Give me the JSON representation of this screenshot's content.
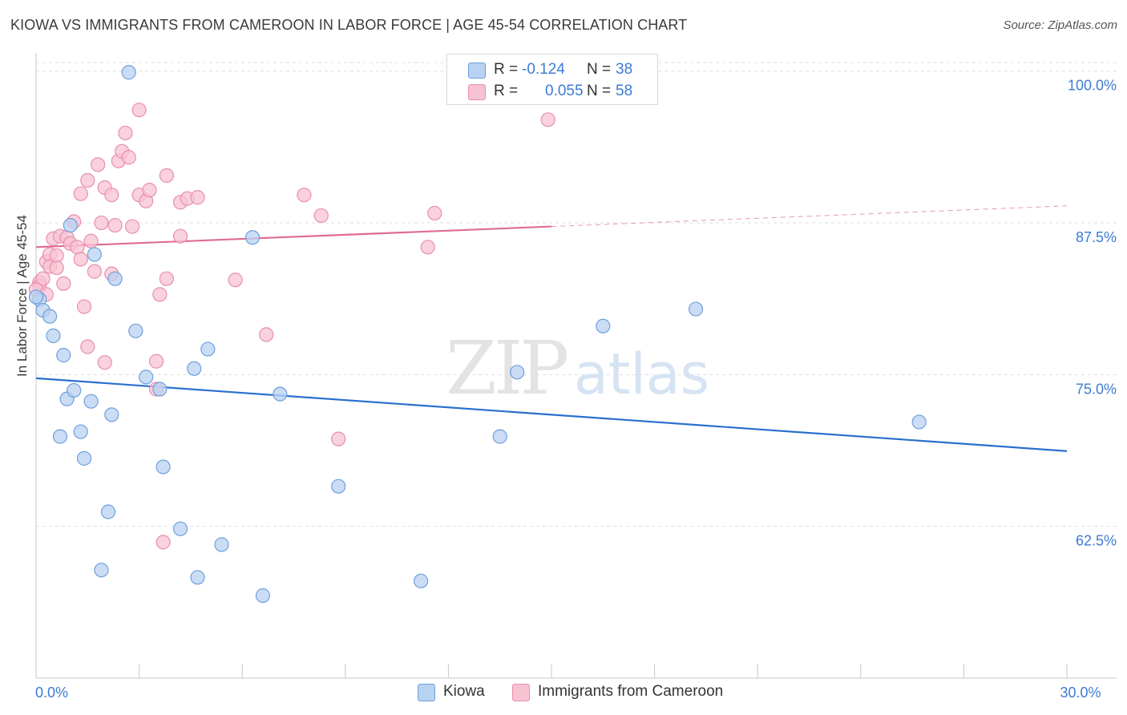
{
  "header": {
    "title": "KIOWA VS IMMIGRANTS FROM CAMEROON IN LABOR FORCE | AGE 45-54 CORRELATION CHART",
    "source": "Source: ZipAtlas.com"
  },
  "colors": {
    "kiowa_fill": "#b8d2f2",
    "kiowa_stroke": "#6f9fdc",
    "kiowa_line": "#2a6fcf",
    "cameroon_fill": "#f7c3d3",
    "cameroon_stroke": "#e98fab",
    "cameroon_line": "#e06c92",
    "axis_label": "#3d7bd4",
    "grid": "#dedede"
  },
  "watermark": {
    "zip": "ZIP",
    "atlas": "atlas"
  },
  "legend": {
    "rows": [
      {
        "r_label": "R =",
        "r_value": "-0.124",
        "n_label": "N =",
        "n_value": "38"
      },
      {
        "r_label": "R =",
        "r_value": "0.055",
        "n_label": "N =",
        "n_value": "58"
      }
    ]
  },
  "bottom_legend": {
    "items": [
      {
        "label": "Kiowa"
      },
      {
        "label": "Immigrants from Cameroon"
      }
    ]
  },
  "chart_data": {
    "type": "scatter",
    "title": "KIOWA VS IMMIGRANTS FROM CAMEROON IN LABOR FORCE | AGE 45-54 CORRELATION CHART",
    "xlabel": "",
    "ylabel": "In Labor Force | Age 45-54",
    "xlim": [
      0,
      30
    ],
    "ylim": [
      50,
      101.5
    ],
    "x_tick_labels": [
      {
        "value": 0,
        "label": "0.0%"
      },
      {
        "value": 30,
        "label": "30.0%"
      }
    ],
    "x_minor_ticks": [
      0,
      3,
      6,
      9,
      12,
      15,
      18,
      21,
      24,
      27,
      30
    ],
    "y_ticks": [
      {
        "value": 100,
        "label": "100.0%"
      },
      {
        "value": 87.5,
        "label": "87.5%"
      },
      {
        "value": 75,
        "label": "75.0%"
      },
      {
        "value": 62.5,
        "label": "62.5%"
      }
    ],
    "legend_position": "top-center",
    "series": [
      {
        "name": "Kiowa",
        "r": -0.124,
        "n": 38,
        "trend": {
          "x0": 0,
          "y0": 74.7,
          "x1": 30,
          "y1": 68.7,
          "dashed_from": null
        },
        "points": [
          [
            0.1,
            81.2
          ],
          [
            0.2,
            80.3
          ],
          [
            0.4,
            79.8
          ],
          [
            0.5,
            78.2
          ],
          [
            0.7,
            69.9
          ],
          [
            0.8,
            76.6
          ],
          [
            0.9,
            73.0
          ],
          [
            1.0,
            87.3
          ],
          [
            1.1,
            73.7
          ],
          [
            1.3,
            70.3
          ],
          [
            1.4,
            68.1
          ],
          [
            1.6,
            72.8
          ],
          [
            1.7,
            84.9
          ],
          [
            1.9,
            58.9
          ],
          [
            2.1,
            63.7
          ],
          [
            2.2,
            71.7
          ],
          [
            2.3,
            82.9
          ],
          [
            2.7,
            99.9
          ],
          [
            2.9,
            78.6
          ],
          [
            3.2,
            74.8
          ],
          [
            3.6,
            73.8
          ],
          [
            3.7,
            67.4
          ],
          [
            4.2,
            62.3
          ],
          [
            4.6,
            75.5
          ],
          [
            4.7,
            58.3
          ],
          [
            5.0,
            77.1
          ],
          [
            5.4,
            61.0
          ],
          [
            6.3,
            86.3
          ],
          [
            6.6,
            56.8
          ],
          [
            7.1,
            73.4
          ],
          [
            8.8,
            65.8
          ],
          [
            11.2,
            58.0
          ],
          [
            13.5,
            69.9
          ],
          [
            14.0,
            75.2
          ],
          [
            16.5,
            79.0
          ],
          [
            19.2,
            80.4
          ],
          [
            25.7,
            71.1
          ],
          [
            0.0,
            81.4
          ]
        ]
      },
      {
        "name": "Immigrants from Cameroon",
        "r": 0.055,
        "n": 58,
        "trend": {
          "x0": 0,
          "y0": 85.5,
          "x1": 30,
          "y1": 88.9,
          "dashed_from": 15.0
        },
        "points": [
          [
            0.1,
            82.6
          ],
          [
            0.1,
            82.3
          ],
          [
            0.2,
            82.9
          ],
          [
            0.3,
            84.3
          ],
          [
            0.4,
            84.9
          ],
          [
            0.4,
            83.9
          ],
          [
            0.5,
            86.2
          ],
          [
            0.6,
            84.8
          ],
          [
            0.6,
            83.8
          ],
          [
            0.7,
            86.4
          ],
          [
            0.8,
            82.5
          ],
          [
            0.9,
            86.3
          ],
          [
            1.0,
            85.8
          ],
          [
            1.1,
            87.6
          ],
          [
            1.2,
            85.5
          ],
          [
            1.3,
            84.5
          ],
          [
            1.3,
            89.9
          ],
          [
            1.4,
            80.6
          ],
          [
            1.5,
            91.0
          ],
          [
            1.5,
            77.3
          ],
          [
            1.6,
            86.0
          ],
          [
            1.7,
            83.5
          ],
          [
            1.8,
            92.3
          ],
          [
            1.9,
            87.5
          ],
          [
            2.0,
            76.0
          ],
          [
            2.0,
            90.4
          ],
          [
            2.2,
            83.3
          ],
          [
            2.2,
            89.8
          ],
          [
            2.3,
            87.3
          ],
          [
            2.4,
            92.6
          ],
          [
            2.5,
            93.4
          ],
          [
            2.6,
            94.9
          ],
          [
            2.7,
            92.9
          ],
          [
            2.8,
            87.2
          ],
          [
            3.0,
            89.8
          ],
          [
            3.0,
            96.8
          ],
          [
            3.2,
            89.3
          ],
          [
            3.3,
            90.2
          ],
          [
            3.5,
            76.1
          ],
          [
            3.5,
            73.8
          ],
          [
            3.6,
            81.6
          ],
          [
            3.7,
            61.2
          ],
          [
            3.8,
            91.4
          ],
          [
            3.8,
            82.9
          ],
          [
            4.2,
            86.4
          ],
          [
            4.2,
            89.2
          ],
          [
            4.4,
            89.5
          ],
          [
            4.7,
            89.6
          ],
          [
            5.8,
            82.8
          ],
          [
            6.7,
            78.3
          ],
          [
            7.8,
            89.8
          ],
          [
            8.3,
            88.1
          ],
          [
            8.8,
            69.7
          ],
          [
            11.4,
            85.5
          ],
          [
            11.6,
            88.3
          ],
          [
            14.9,
            96.0
          ],
          [
            0.0,
            82.0
          ],
          [
            0.3,
            81.6
          ]
        ]
      }
    ]
  }
}
